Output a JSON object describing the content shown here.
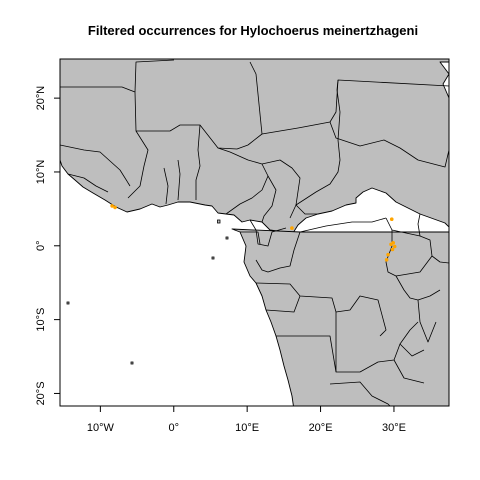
{
  "title": "Filtered occurrences for Hylochoerus meinertzhageni",
  "map": {
    "extent": {
      "lon_min": -15.5,
      "lon_max": 37.5,
      "lat_min": -21.7,
      "lat_max": 25.3
    },
    "land_color": "#bebebe",
    "water_color": "#ffffff",
    "point_color": "#ffa500"
  },
  "x_axis": {
    "ticks": [
      {
        "value": -10,
        "label": "10°W"
      },
      {
        "value": 0,
        "label": "0°"
      },
      {
        "value": 10,
        "label": "10°E"
      },
      {
        "value": 20,
        "label": "20°E"
      },
      {
        "value": 30,
        "label": "30°E"
      }
    ]
  },
  "y_axis": {
    "ticks": [
      {
        "value": 20,
        "label": "20°N"
      },
      {
        "value": 10,
        "label": "10°N"
      },
      {
        "value": 0,
        "label": "0°"
      },
      {
        "value": -10,
        "label": "10°S"
      },
      {
        "value": -20,
        "label": "20°S"
      }
    ]
  },
  "occurrences": [
    {
      "lon": -8.4,
      "lat": 5.4
    },
    {
      "lon": -8.0,
      "lat": 5.2
    },
    {
      "lon": 16.1,
      "lat": 2.4
    },
    {
      "lon": 29.7,
      "lat": 3.6
    },
    {
      "lon": 29.9,
      "lat": 0.4
    },
    {
      "lon": 29.6,
      "lat": 0.2
    },
    {
      "lon": 30.1,
      "lat": -0.1
    },
    {
      "lon": 29.8,
      "lat": -0.5
    },
    {
      "lon": 29.2,
      "lat": -1.2
    },
    {
      "lon": 29.0,
      "lat": -1.9
    }
  ]
}
